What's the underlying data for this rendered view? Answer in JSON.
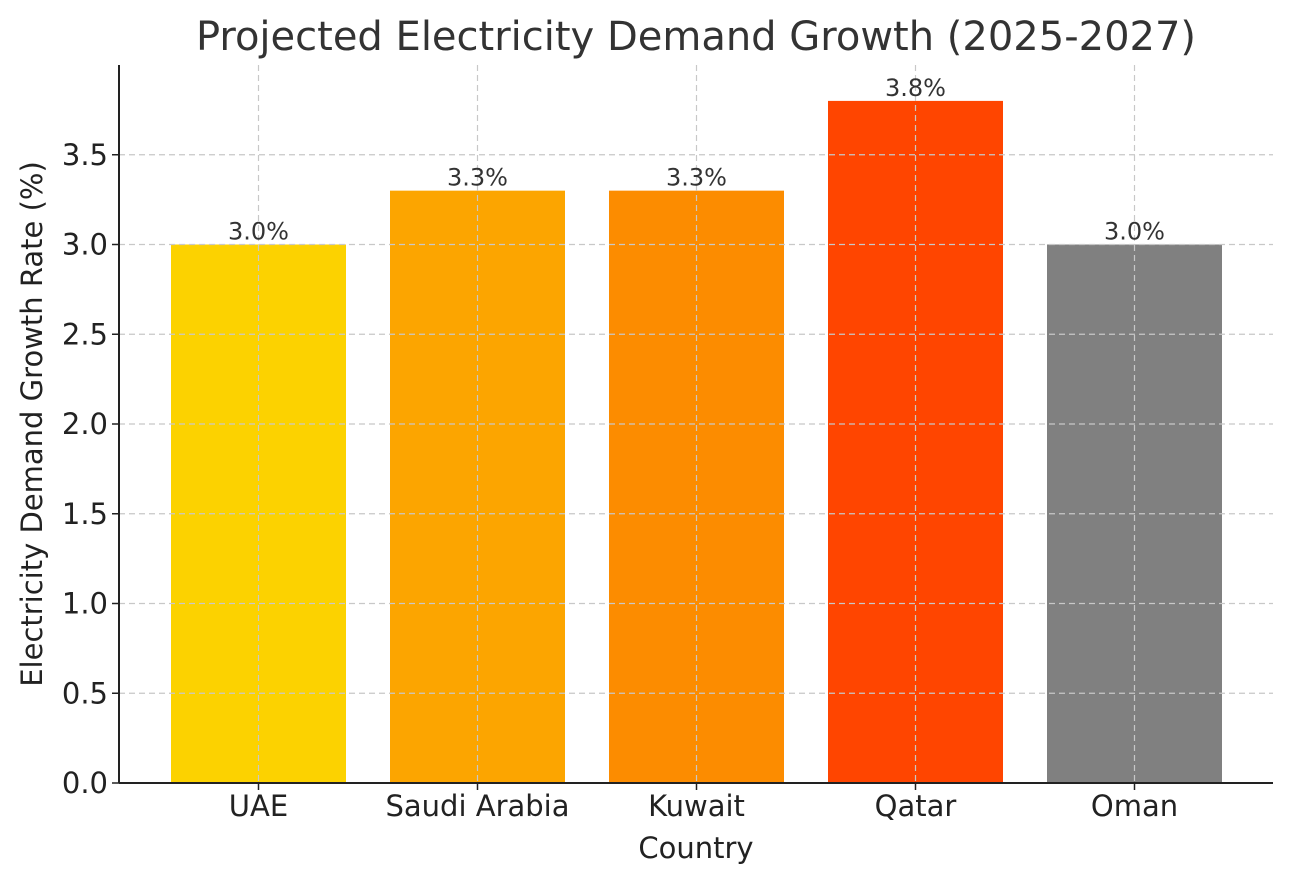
{
  "chart_data": {
    "type": "bar",
    "title": "Projected Electricity Demand Growth (2025-2027)",
    "xlabel": "Country",
    "ylabel": "Electricity Demand Growth Rate (%)",
    "categories": [
      "UAE",
      "Saudi Arabia",
      "Kuwait",
      "Qatar",
      "Oman"
    ],
    "values": [
      3.0,
      3.3,
      3.3,
      3.8,
      3.0
    ],
    "data_labels": [
      "3.0%",
      "3.3%",
      "3.3%",
      "3.8%",
      "3.0%"
    ],
    "colors": [
      "#fcd200",
      "#fca500",
      "#fc8c00",
      "#ff4500",
      "#808080"
    ],
    "ylim": [
      0,
      4.0
    ],
    "yticks": [
      0.0,
      0.5,
      1.0,
      1.5,
      2.0,
      2.5,
      3.0,
      3.5
    ],
    "ytick_labels": [
      "0.0",
      "0.5",
      "1.0",
      "1.5",
      "2.0",
      "2.5",
      "3.0",
      "3.5"
    ],
    "grid": true,
    "grid_style": "dashed"
  }
}
